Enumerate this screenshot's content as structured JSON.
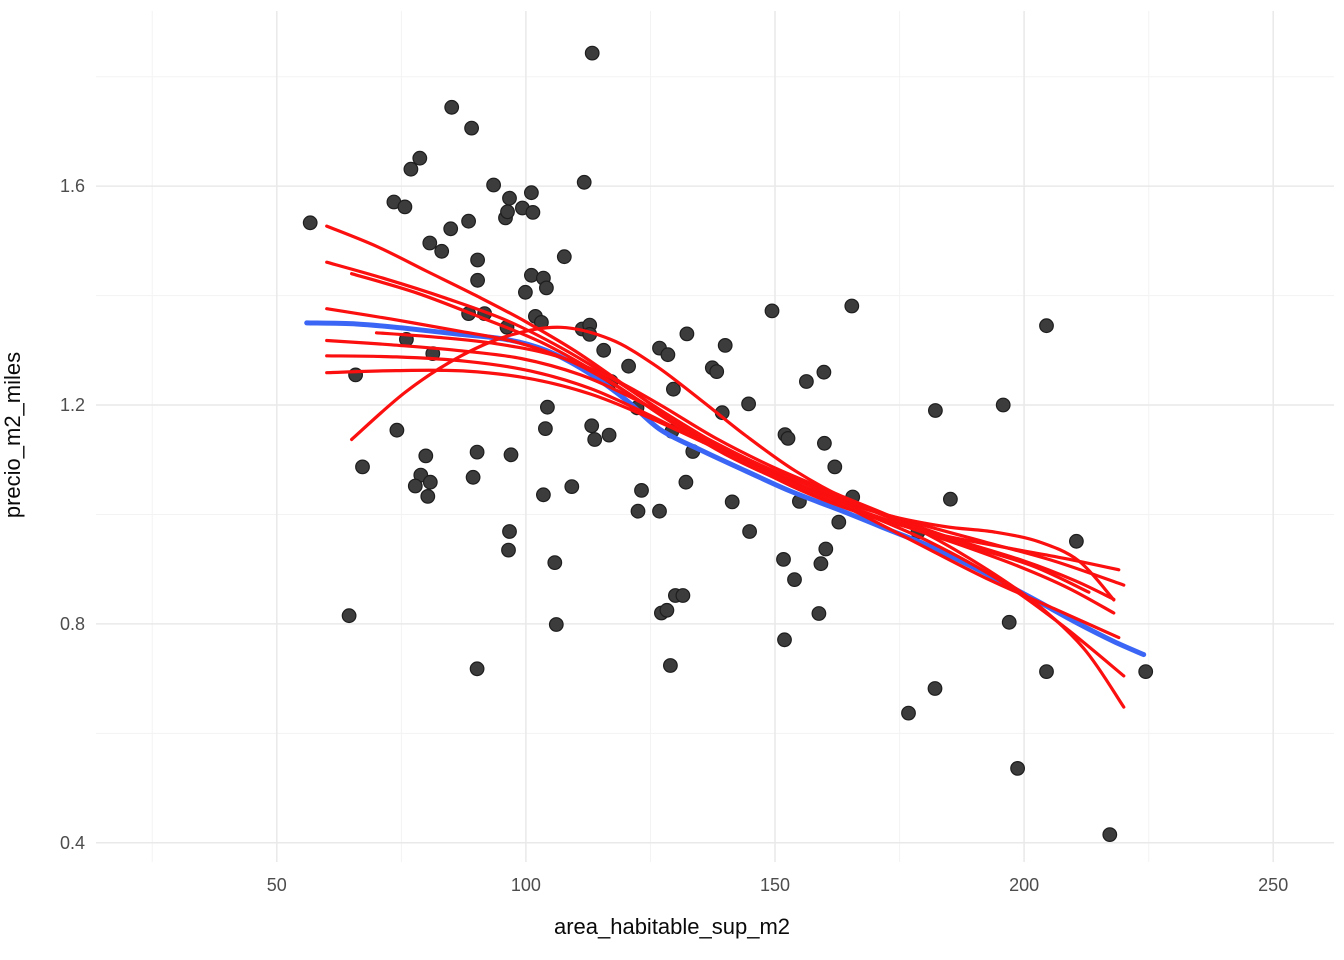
{
  "chart_data": {
    "type": "scatter",
    "title": "",
    "xlabel": "area_habitable_sup_m2",
    "ylabel": "precio_m2_miles",
    "xlim": [
      13.7,
      262.2
    ],
    "ylim": [
      0.365,
      1.92
    ],
    "grid": "on",
    "legend": "none",
    "x_ticks": [
      50,
      100,
      150,
      200,
      250
    ],
    "y_ticks": [
      0.4,
      0.8,
      1.2,
      1.6
    ],
    "x_minor_ticks": [
      25,
      75,
      125,
      175,
      225
    ],
    "y_minor_ticks": [
      0.6,
      1.0,
      1.4,
      1.8
    ],
    "colors": {
      "point": "#3c3c3c",
      "point_stroke": "#1e1e1e",
      "red_line": "#fb0f0f",
      "blue_line": "#3b66f5",
      "grid_major": "#e9e9e9",
      "grid_minor": "#f3f3f3",
      "tick_text": "#4d4d4d",
      "title_text": "#0a0a0a"
    },
    "points": [
      [
        56.7,
        1.533
      ],
      [
        73.5,
        1.571
      ],
      [
        75.7,
        1.562
      ],
      [
        76.9,
        1.631
      ],
      [
        78.7,
        1.651
      ],
      [
        80.7,
        1.496
      ],
      [
        83.1,
        1.481
      ],
      [
        84.9,
        1.522
      ],
      [
        85.1,
        1.744
      ],
      [
        88.5,
        1.536
      ],
      [
        89.1,
        1.706
      ],
      [
        90.3,
        1.465
      ],
      [
        90.3,
        1.428
      ],
      [
        93.5,
        1.602
      ],
      [
        95.9,
        1.542
      ],
      [
        96.3,
        1.553
      ],
      [
        96.7,
        1.578
      ],
      [
        99.3,
        1.56
      ],
      [
        99.9,
        1.406
      ],
      [
        101.1,
        1.588
      ],
      [
        101.4,
        1.552
      ],
      [
        101.1,
        1.437
      ],
      [
        103.5,
        1.432
      ],
      [
        104.1,
        1.414
      ],
      [
        107.7,
        1.471
      ],
      [
        111.7,
        1.607
      ],
      [
        113.3,
        1.843
      ],
      [
        65.8,
        1.255
      ],
      [
        76.0,
        1.32
      ],
      [
        81.3,
        1.294
      ],
      [
        88.5,
        1.367
      ],
      [
        91.7,
        1.367
      ],
      [
        96.2,
        1.342
      ],
      [
        74.1,
        1.154
      ],
      [
        79.9,
        1.107
      ],
      [
        67.2,
        1.087
      ],
      [
        78.9,
        1.072
      ],
      [
        80.8,
        1.059
      ],
      [
        77.8,
        1.052
      ],
      [
        80.3,
        1.033
      ],
      [
        90.2,
        1.114
      ],
      [
        89.4,
        1.068
      ],
      [
        97.0,
        1.109
      ],
      [
        96.7,
        0.969
      ],
      [
        96.5,
        0.935
      ],
      [
        101.9,
        1.362
      ],
      [
        103.1,
        1.351
      ],
      [
        111.3,
        1.339
      ],
      [
        112.8,
        1.346
      ],
      [
        112.8,
        1.329
      ],
      [
        115.6,
        1.3
      ],
      [
        120.6,
        1.271
      ],
      [
        117.1,
        1.243
      ],
      [
        126.8,
        1.304
      ],
      [
        128.5,
        1.292
      ],
      [
        132.3,
        1.33
      ],
      [
        129.6,
        1.229
      ],
      [
        137.4,
        1.268
      ],
      [
        138.3,
        1.261
      ],
      [
        140.0,
        1.309
      ],
      [
        149.4,
        1.372
      ],
      [
        165.4,
        1.381
      ],
      [
        144.7,
        1.202
      ],
      [
        139.4,
        1.186
      ],
      [
        104.3,
        1.196
      ],
      [
        103.9,
        1.157
      ],
      [
        113.2,
        1.162
      ],
      [
        113.8,
        1.137
      ],
      [
        116.7,
        1.145
      ],
      [
        122.3,
        1.195
      ],
      [
        129.3,
        1.152
      ],
      [
        133.5,
        1.115
      ],
      [
        132.1,
        1.059
      ],
      [
        123.2,
        1.044
      ],
      [
        122.5,
        1.006
      ],
      [
        126.8,
        1.006
      ],
      [
        103.5,
        1.036
      ],
      [
        109.2,
        1.051
      ],
      [
        141.4,
        1.023
      ],
      [
        144.9,
        0.969
      ],
      [
        152.0,
        1.146
      ],
      [
        152.6,
        1.139
      ],
      [
        159.9,
        1.13
      ],
      [
        156.3,
        1.243
      ],
      [
        159.8,
        1.26
      ],
      [
        162.0,
        1.087
      ],
      [
        165.6,
        1.032
      ],
      [
        154.9,
        1.024
      ],
      [
        160.2,
        0.937
      ],
      [
        159.2,
        0.91
      ],
      [
        151.7,
        0.918
      ],
      [
        153.9,
        0.881
      ],
      [
        162.8,
        0.986
      ],
      [
        105.8,
        0.912
      ],
      [
        178.7,
        0.968
      ],
      [
        204.5,
        1.345
      ],
      [
        182.2,
        1.19
      ],
      [
        195.8,
        1.2
      ],
      [
        185.2,
        1.028
      ],
      [
        210.5,
        0.951
      ],
      [
        64.5,
        0.815
      ],
      [
        90.2,
        0.718
      ],
      [
        130.0,
        0.852
      ],
      [
        131.5,
        0.852
      ],
      [
        127.2,
        0.82
      ],
      [
        128.3,
        0.825
      ],
      [
        106.1,
        0.799
      ],
      [
        158.8,
        0.819
      ],
      [
        151.9,
        0.771
      ],
      [
        129.0,
        0.724
      ],
      [
        176.8,
        0.637
      ],
      [
        197.0,
        0.803
      ],
      [
        204.5,
        0.713
      ],
      [
        224.4,
        0.713
      ],
      [
        182.1,
        0.682
      ],
      [
        198.7,
        0.536
      ],
      [
        217.2,
        0.415
      ]
    ],
    "blue_smooth": [
      [
        56,
        1.35
      ],
      [
        66,
        1.348
      ],
      [
        76,
        1.34
      ],
      [
        86,
        1.33
      ],
      [
        96,
        1.32
      ],
      [
        104,
        1.3
      ],
      [
        112,
        1.262
      ],
      [
        120,
        1.21
      ],
      [
        127,
        1.155
      ],
      [
        135,
        1.118
      ],
      [
        144,
        1.08
      ],
      [
        153,
        1.043
      ],
      [
        163,
        1.008
      ],
      [
        172,
        0.975
      ],
      [
        181,
        0.942
      ],
      [
        191,
        0.898
      ],
      [
        201,
        0.85
      ],
      [
        211,
        0.8
      ],
      [
        218,
        0.768
      ],
      [
        224,
        0.744
      ]
    ],
    "red_smooths": [
      [
        [
          60,
          1.527
        ],
        [
          70,
          1.49
        ],
        [
          80,
          1.445
        ],
        [
          90,
          1.4
        ],
        [
          100,
          1.352
        ],
        [
          110,
          1.298
        ],
        [
          120,
          1.235
        ],
        [
          130,
          1.17
        ],
        [
          142,
          1.105
        ],
        [
          155,
          1.045
        ],
        [
          168,
          1.0
        ],
        [
          182,
          0.965
        ],
        [
          196,
          0.94
        ],
        [
          208,
          0.92
        ],
        [
          219,
          0.899
        ]
      ],
      [
        [
          60,
          1.461
        ],
        [
          72,
          1.43
        ],
        [
          84,
          1.395
        ],
        [
          96,
          1.355
        ],
        [
          107,
          1.305
        ],
        [
          118,
          1.245
        ],
        [
          128,
          1.185
        ],
        [
          140,
          1.12
        ],
        [
          152,
          1.065
        ],
        [
          165,
          1.02
        ],
        [
          178,
          0.985
        ],
        [
          192,
          0.95
        ],
        [
          206,
          0.915
        ],
        [
          220,
          0.871
        ]
      ],
      [
        [
          65,
          1.44
        ],
        [
          78,
          1.405
        ],
        [
          91,
          1.36
        ],
        [
          103,
          1.315
        ],
        [
          114,
          1.26
        ],
        [
          125,
          1.195
        ],
        [
          136,
          1.135
        ],
        [
          150,
          1.075
        ],
        [
          164,
          1.015
        ],
        [
          178,
          0.95
        ],
        [
          192,
          0.885
        ],
        [
          206,
          0.828
        ],
        [
          219,
          0.775
        ]
      ],
      [
        [
          60,
          1.376
        ],
        [
          73,
          1.357
        ],
        [
          86,
          1.336
        ],
        [
          98,
          1.315
        ],
        [
          109,
          1.28
        ],
        [
          119,
          1.23
        ],
        [
          129,
          1.17
        ],
        [
          140,
          1.11
        ],
        [
          153,
          1.055
        ],
        [
          167,
          1.005
        ],
        [
          181,
          0.95
        ],
        [
          195,
          0.88
        ],
        [
          208,
          0.795
        ],
        [
          220,
          0.705
        ]
      ],
      [
        [
          70,
          1.332
        ],
        [
          82,
          1.324
        ],
        [
          94,
          1.312
        ],
        [
          106,
          1.29
        ],
        [
          117,
          1.25
        ],
        [
          127,
          1.2
        ],
        [
          138,
          1.14
        ],
        [
          150,
          1.085
        ],
        [
          163,
          1.035
        ],
        [
          176,
          0.985
        ],
        [
          189,
          0.92
        ],
        [
          202,
          0.84
        ],
        [
          212,
          0.755
        ],
        [
          220,
          0.648
        ]
      ],
      [
        [
          60,
          1.318
        ],
        [
          73,
          1.31
        ],
        [
          86,
          1.3
        ],
        [
          99,
          1.285
        ],
        [
          111,
          1.255
        ],
        [
          122,
          1.21
        ],
        [
          133,
          1.155
        ],
        [
          146,
          1.095
        ],
        [
          159,
          1.045
        ],
        [
          172,
          1.0
        ],
        [
          186,
          0.955
        ],
        [
          200,
          0.915
        ],
        [
          210,
          0.88
        ],
        [
          218,
          0.845
        ]
      ],
      [
        [
          60,
          1.29
        ],
        [
          74,
          1.288
        ],
        [
          88,
          1.28
        ],
        [
          101,
          1.262
        ],
        [
          113,
          1.23
        ],
        [
          124,
          1.185
        ],
        [
          135,
          1.135
        ],
        [
          148,
          1.08
        ],
        [
          160,
          1.035
        ],
        [
          172,
          1.0
        ],
        [
          184,
          0.978
        ],
        [
          194,
          0.968
        ],
        [
          203,
          0.95
        ],
        [
          211,
          0.915
        ],
        [
          218,
          0.844
        ]
      ],
      [
        [
          60,
          1.259
        ],
        [
          74,
          1.263
        ],
        [
          88,
          1.262
        ],
        [
          101,
          1.248
        ],
        [
          113,
          1.22
        ],
        [
          124,
          1.18
        ],
        [
          136,
          1.13
        ],
        [
          148,
          1.078
        ],
        [
          161,
          1.028
        ],
        [
          174,
          0.985
        ],
        [
          187,
          0.945
        ],
        [
          199,
          0.905
        ],
        [
          209,
          0.865
        ],
        [
          218,
          0.82
        ]
      ],
      [
        [
          65,
          1.137
        ],
        [
          76,
          1.225
        ],
        [
          87,
          1.29
        ],
        [
          97,
          1.328
        ],
        [
          107,
          1.342
        ],
        [
          117,
          1.32
        ],
        [
          126,
          1.272
        ],
        [
          135,
          1.21
        ],
        [
          144,
          1.145
        ],
        [
          154,
          1.08
        ],
        [
          165,
          1.025
        ],
        [
          177,
          0.98
        ],
        [
          190,
          0.94
        ],
        [
          202,
          0.905
        ],
        [
          213,
          0.858
        ]
      ]
    ]
  }
}
